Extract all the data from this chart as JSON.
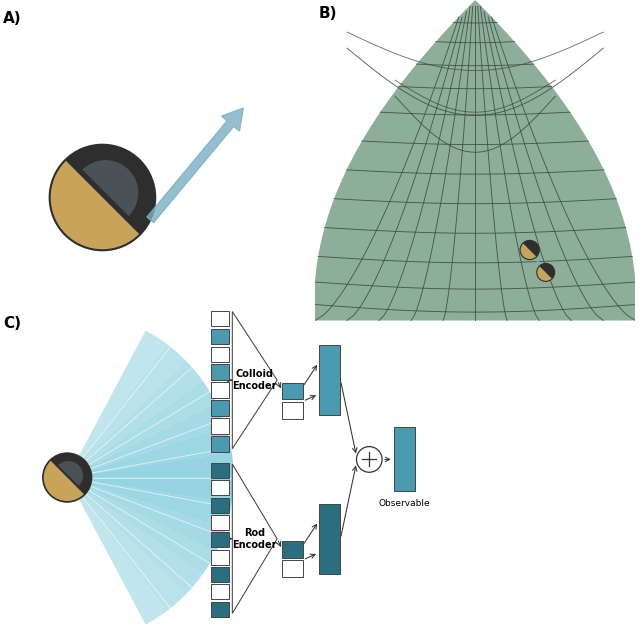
{
  "panel_labels": [
    "A)",
    "B)",
    "C)"
  ],
  "colloid_gold": "#C8A45A",
  "colloid_dark": "#2E2E2E",
  "colloid_grey": "#565F65",
  "arrow_blue": "#7BAFC4",
  "surface_fill": "#8DAF98",
  "surface_line": "#3A4A40",
  "teal_light": "#4A9BAF",
  "teal_dark": "#2A6E80",
  "fan_teal": "#3AAFC8",
  "label_fs": 11,
  "enc_fs": 7,
  "obs_fs": 6.5
}
